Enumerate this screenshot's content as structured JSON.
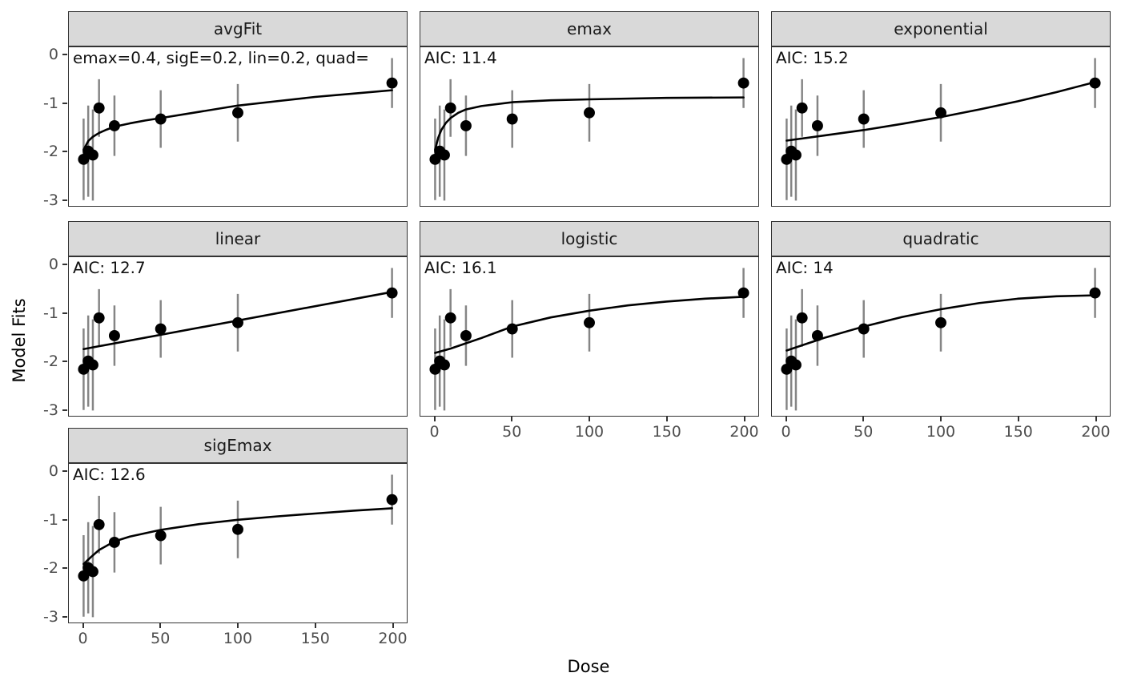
{
  "figure": {
    "background": "#ffffff",
    "x_axis_title": "Dose",
    "y_axis_title": "Model Fits"
  },
  "chart_data": {
    "type": "scatter",
    "description": "Faceted dose-response model fits: black points are dose-group estimates with gray confidence-interval bars; black curve is each fitted model. Facet strip shows model name; text annotation shows model AIC (or model-average weights for avgFit).",
    "xlabel": "Dose",
    "ylabel": "Model Fits",
    "x_ticks": [
      0,
      50,
      100,
      150,
      200
    ],
    "y_ticks": [
      0,
      -1,
      -2,
      -3
    ],
    "x_domain": [
      0,
      200
    ],
    "ylim": [
      -3.17,
      0.17
    ],
    "grid": "off",
    "legend": "none",
    "facet_layout": {
      "ncol": 3,
      "order": [
        "avgFit",
        "emax",
        "exponential",
        "linear",
        "logistic",
        "quadratic",
        "sigEmax"
      ]
    },
    "points": {
      "doses": [
        0,
        3,
        6,
        10,
        20,
        50,
        100,
        200
      ],
      "means": [
        -2.17,
        -2.0,
        -2.08,
        -1.1,
        -1.47,
        -1.33,
        -1.2,
        -0.58
      ],
      "ci_lower": [
        -3.02,
        -2.95,
        -3.03,
        -1.7,
        -2.1,
        -1.93,
        -1.8,
        -1.1
      ],
      "ci_upper": [
        -1.32,
        -1.05,
        -1.13,
        -0.5,
        -0.84,
        -0.73,
        -0.6,
        -0.06
      ]
    },
    "facets": [
      {
        "title": "avgFit",
        "annotation": "emax=0.4, sigE=0.2, lin=0.2, quad=",
        "curve": {
          "x": [
            0,
            3,
            6,
            10,
            15,
            20,
            30,
            40,
            50,
            75,
            100,
            125,
            150,
            175,
            200
          ],
          "y": [
            -1.97,
            -1.79,
            -1.7,
            -1.62,
            -1.55,
            -1.49,
            -1.42,
            -1.36,
            -1.31,
            -1.18,
            -1.05,
            -0.96,
            -0.87,
            -0.8,
            -0.73
          ]
        }
      },
      {
        "title": "emax",
        "annotation": "AIC: 11.4",
        "curve": {
          "x": [
            0,
            2,
            4,
            7,
            10,
            15,
            20,
            30,
            50,
            75,
            100,
            150,
            200
          ],
          "y": [
            -1.97,
            -1.72,
            -1.56,
            -1.41,
            -1.31,
            -1.2,
            -1.13,
            -1.06,
            -0.98,
            -0.94,
            -0.92,
            -0.89,
            -0.88
          ]
        }
      },
      {
        "title": "exponential",
        "annotation": "AIC: 15.2",
        "curve": {
          "x": [
            0,
            25,
            50,
            75,
            100,
            125,
            150,
            175,
            200
          ],
          "y": [
            -1.78,
            -1.67,
            -1.56,
            -1.43,
            -1.29,
            -1.13,
            -0.96,
            -0.77,
            -0.56
          ]
        }
      },
      {
        "title": "linear",
        "annotation": "AIC: 12.7",
        "curve": {
          "x": [
            0,
            200
          ],
          "y": [
            -1.75,
            -0.56
          ]
        }
      },
      {
        "title": "logistic",
        "annotation": "AIC: 16.1",
        "curve": {
          "x": [
            0,
            10,
            20,
            30,
            50,
            75,
            100,
            125,
            150,
            175,
            200
          ],
          "y": [
            -1.83,
            -1.74,
            -1.63,
            -1.52,
            -1.28,
            -1.09,
            -0.95,
            -0.84,
            -0.76,
            -0.7,
            -0.66
          ]
        }
      },
      {
        "title": "quadratic",
        "annotation": "AIC: 14",
        "curve": {
          "x": [
            0,
            25,
            50,
            75,
            100,
            125,
            150,
            175,
            200
          ],
          "y": [
            -1.78,
            -1.51,
            -1.28,
            -1.08,
            -0.92,
            -0.79,
            -0.7,
            -0.65,
            -0.63
          ]
        }
      },
      {
        "title": "sigEmax",
        "annotation": "AIC: 12.6",
        "curve": {
          "x": [
            0,
            5,
            10,
            20,
            30,
            50,
            75,
            100,
            125,
            150,
            175,
            200
          ],
          "y": [
            -1.92,
            -1.77,
            -1.63,
            -1.45,
            -1.35,
            -1.21,
            -1.09,
            -1.0,
            -0.93,
            -0.87,
            -0.81,
            -0.76
          ]
        }
      }
    ],
    "colors": {
      "point": "#000000",
      "error_bar": "#858585",
      "curve": "#000000",
      "strip_background": "#d9d9d9",
      "strip_border": "#333333",
      "panel_border": "#333333",
      "tick_label": "#4d4d4d",
      "tick_mark": "#333333",
      "annotation_text": "#111111",
      "axis_title": "#000000"
    }
  }
}
